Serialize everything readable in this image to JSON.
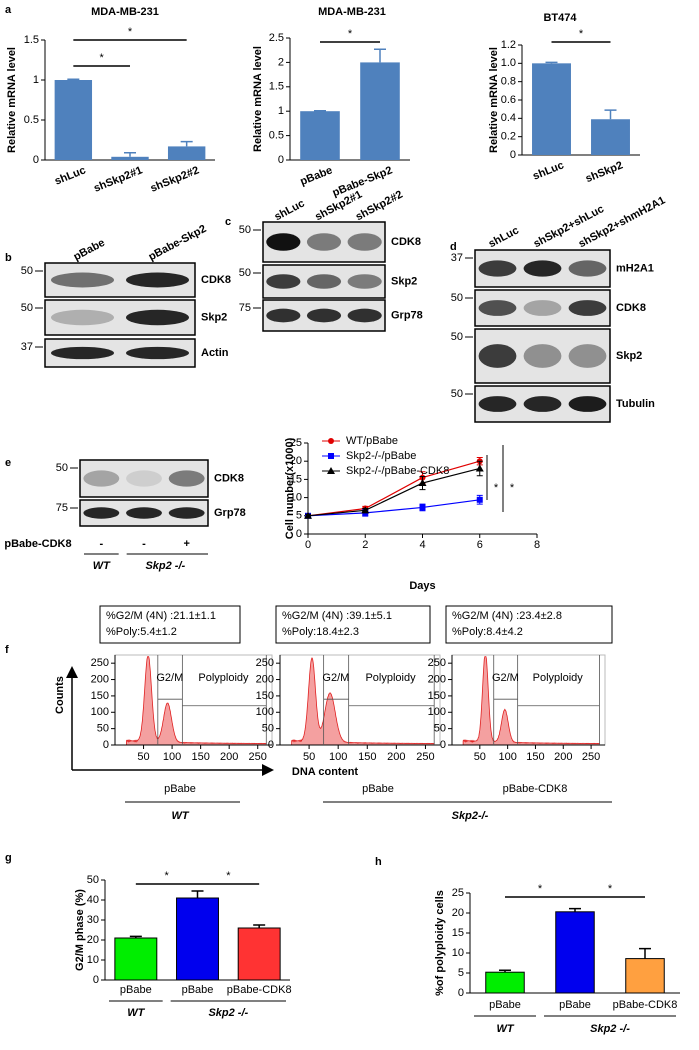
{
  "panel_labels": [
    "a",
    "b",
    "c",
    "d",
    "e",
    "f",
    "g",
    "h"
  ],
  "chart_data": [
    {
      "type": "bar",
      "title": "MDA-MB-231",
      "y_label": "Relative mRNA level",
      "categories": [
        "shLuc",
        "shSkp2#1",
        "shSkp2#2"
      ],
      "values": [
        1,
        0.04,
        0.17
      ],
      "errors": [
        0.01,
        0.05,
        0.06
      ],
      "color": "#4f81bd",
      "ylim": [
        0,
        1.5
      ],
      "yticks": [
        0,
        0.5,
        1,
        1.5
      ],
      "significance": [
        {
          "label": "*",
          "pair": [
            0,
            2
          ]
        },
        {
          "label": "*",
          "pair": [
            0,
            1
          ]
        }
      ]
    },
    {
      "type": "bar",
      "title": "MDA-MB-231",
      "y_label": "Relative mRNA level",
      "categories": [
        "pBabe",
        "pBabe-Skp2"
      ],
      "values": [
        1,
        2
      ],
      "errors": [
        0.01,
        0.27
      ],
      "color": "#4f81bd",
      "ylim": [
        0,
        2.5
      ],
      "yticks": [
        0,
        0.5,
        1,
        1.5,
        2,
        2.5
      ],
      "significance": [
        {
          "label": "*",
          "pair": [
            0,
            1
          ]
        }
      ]
    },
    {
      "type": "bar",
      "title": "BT474",
      "y_label": "Relative mRNA level",
      "categories": [
        "shLuc",
        "shSkp2"
      ],
      "values": [
        1,
        0.39
      ],
      "errors": [
        0.01,
        0.1
      ],
      "color": "#4f81bd",
      "ylim": [
        0,
        1.2
      ],
      "yticks": [
        0,
        0.2,
        0.4,
        0.6,
        0.8,
        {
          "value": 1,
          "label": "1.0"
        },
        1.2
      ],
      "significance": [
        {
          "label": "*",
          "pair": [
            0,
            1
          ]
        }
      ]
    },
    {
      "type": "line",
      "x_label": "Days",
      "y_label": "Cell number(x1000)",
      "x": [
        0,
        2,
        4,
        6
      ],
      "series": [
        {
          "name": "WT/pBabe",
          "color": "#e00000",
          "marker": "circle",
          "values": [
            5,
            7,
            15.5,
            20
          ],
          "errors": [
            0.4,
            0.6,
            1.6,
            1
          ]
        },
        {
          "name": "Skp2-/-/pBabe",
          "color": "#0000ff",
          "marker": "square",
          "values": [
            5,
            5.8,
            7.3,
            9.4
          ],
          "errors": [
            0.4,
            0.9,
            0.9,
            1.2
          ]
        },
        {
          "name": "Skp2-/-/pBabe-CDK8",
          "color": "#000000",
          "marker": "triangle",
          "values": [
            5,
            6.5,
            14,
            18
          ],
          "errors": [
            0.4,
            0.5,
            1.8,
            2
          ]
        }
      ],
      "xlim": [
        0,
        8
      ],
      "xticks": [
        0,
        2,
        4,
        6,
        8
      ],
      "ylim": [
        0,
        25
      ],
      "yticks": [
        0,
        5,
        10,
        15,
        20,
        25
      ],
      "annotations": [
        "*",
        "*"
      ]
    },
    {
      "type": "flow",
      "stats": [
        "%G2/M (4N) :21.1±1.1",
        "%Poly:5.4±1.2"
      ],
      "gates": [
        "G2/M",
        "Polyploidy"
      ],
      "xlim": [
        0,
        275
      ],
      "xticks": [
        50,
        100,
        150,
        200,
        250
      ],
      "ylim": [
        0,
        275
      ],
      "yticks": [
        0,
        50,
        100,
        150,
        200,
        250
      ]
    },
    {
      "type": "flow",
      "stats": [
        "%G2/M (4N) :39.1±5.1",
        "%Poly:18.4±2.3"
      ],
      "gates": [
        "G2/M",
        "Polyploidy"
      ],
      "xlim": [
        0,
        275
      ],
      "xticks": [
        50,
        100,
        150,
        200,
        250
      ],
      "ylim": [
        0,
        275
      ],
      "yticks": [
        0,
        50,
        100,
        150,
        200,
        250
      ]
    },
    {
      "type": "flow",
      "stats": [
        "%G2/M (4N) :23.4±2.8",
        "%Poly:8.4±4.2"
      ],
      "gates": [
        "G2/M",
        "Polyploidy"
      ],
      "xlim": [
        0,
        275
      ],
      "xticks": [
        50,
        100,
        150,
        200,
        250
      ],
      "ylim": [
        0,
        275
      ],
      "yticks": [
        0,
        50,
        100,
        150,
        200,
        250
      ]
    },
    {
      "type": "bar",
      "y_label": "G2/M phase (%)",
      "categories": [
        "pBabe",
        "pBabe",
        "pBabe-CDK8"
      ],
      "values": [
        21,
        41,
        26
      ],
      "errors": [
        0.8,
        3.5,
        1.5
      ],
      "colors": [
        "#00ee00",
        "#0000ee",
        "#ff3333"
      ],
      "ylim": [
        0,
        50
      ],
      "yticks": [
        0,
        10,
        20,
        30,
        40,
        50
      ],
      "significance": [
        {
          "label": "*",
          "pair": [
            0,
            1
          ]
        },
        {
          "label": "*",
          "pair": [
            1,
            2
          ]
        }
      ],
      "groups": [
        {
          "label": "WT",
          "size": 1
        },
        {
          "label": "Skp2 -/-",
          "size": 2
        }
      ]
    },
    {
      "type": "bar",
      "y_label": "%of polyploidy cells",
      "categories": [
        "pBabe",
        "pBabe",
        "pBabe-CDK8"
      ],
      "values": [
        5.2,
        20.3,
        8.6
      ],
      "errors": [
        0.5,
        0.8,
        2.5
      ],
      "colors": [
        "#00ee00",
        "#0000ee",
        "#ffa040"
      ],
      "ylim": [
        0,
        25
      ],
      "yticks": [
        0,
        5,
        10,
        15,
        20,
        25
      ],
      "significance": [
        {
          "label": "*",
          "pair": [
            0,
            1
          ]
        },
        {
          "label": "*",
          "pair": [
            1,
            2
          ]
        }
      ],
      "groups": [
        {
          "label": "WT",
          "size": 1
        },
        {
          "label": "Skp2 -/-",
          "size": 2
        }
      ]
    }
  ],
  "blots": [
    {
      "lanes": [
        "pBabe",
        "pBabe-Skp2"
      ],
      "rows": [
        {
          "label": "CDK8",
          "marker": "50"
        },
        {
          "label": "Skp2",
          "marker": "50"
        },
        {
          "label": "Actin",
          "marker": "37"
        }
      ]
    },
    {
      "lanes": [
        "shLuc",
        "shSkp2#1",
        "shSkp2#2"
      ],
      "rows": [
        {
          "label": "CDK8",
          "marker": "50"
        },
        {
          "label": "Skp2",
          "marker": "50"
        },
        {
          "label": "Grp78",
          "marker": "75"
        }
      ]
    },
    {
      "lanes": [
        "shLuc",
        "shSkp2+shLuc",
        "shSkp2+shmH2A1"
      ],
      "rows": [
        {
          "label": "mH2A1",
          "marker": "37"
        },
        {
          "label": "CDK8",
          "marker": "50"
        },
        {
          "label": "Skp2",
          "marker": "50"
        },
        {
          "label": "Tubulin",
          "marker": "50"
        }
      ]
    },
    {
      "rows": [
        {
          "label": "CDK8",
          "marker": "50"
        },
        {
          "label": "Grp78",
          "marker": "75"
        }
      ],
      "treatment": {
        "label": "pBabe-CDK8",
        "signs": [
          "-",
          "-",
          "+"
        ]
      },
      "genotypes": [
        "WT",
        "Skp2 -/-"
      ]
    }
  ],
  "flow_axes": {
    "y_label": "Counts",
    "x_label": "DNA content"
  },
  "flow_groups": [
    {
      "labels": [
        "pBabe"
      ],
      "genotype": "WT"
    },
    {
      "labels": [
        "pBabe",
        "pBabe-CDK8"
      ],
      "genotype": "Skp2-/-"
    }
  ]
}
